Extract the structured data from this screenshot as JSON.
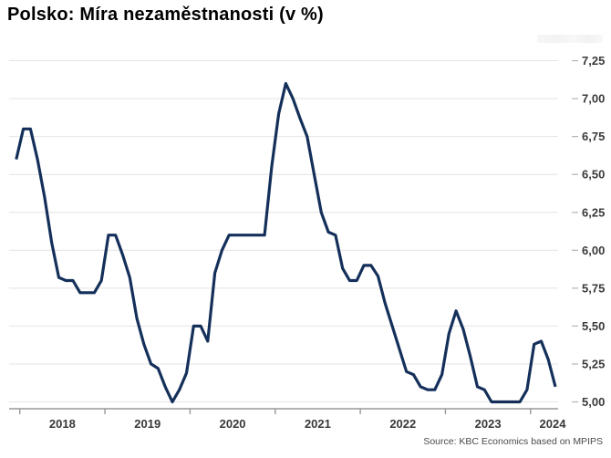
{
  "title": "Polsko: Míra nezaměstnanosti (v %)",
  "source_note": "Source: KBC Economics based on MPIPS",
  "colors": {
    "line": "#14305a",
    "grid": "#e4e4e4",
    "axis": "#999999",
    "right_tick": "#b3b3b3",
    "tick_label": "#3a3a3a",
    "title_text": "#000000",
    "source_text": "#4a4a4a",
    "background": "#ffffff"
  },
  "chart_data": {
    "type": "line",
    "title": "Polsko: Míra nezaměstnanosti (v %)",
    "xlabel": "",
    "ylabel": "",
    "legend": "none",
    "grid": "horizontal",
    "y_axis": {
      "side": "right",
      "min": 5.0,
      "max": 7.25,
      "step": 0.25,
      "tick_labels": [
        "5,00",
        "5,25",
        "5,50",
        "5,75",
        "6,00",
        "6,25",
        "6,50",
        "6,75",
        "7,00",
        "7,25"
      ]
    },
    "x_axis": {
      "year_tick_labels": [
        "2018",
        "2019",
        "2020",
        "2021",
        "2022",
        "2023",
        "2024"
      ]
    },
    "series": [
      {
        "name": "Míra nezaměstnanosti (v %)",
        "color": "#14305a",
        "points": [
          [
            "2017-12",
            6.6
          ],
          [
            "2018-01",
            6.8
          ],
          [
            "2018-02",
            6.8
          ],
          [
            "2018-03",
            6.6
          ],
          [
            "2018-04",
            6.35
          ],
          [
            "2018-05",
            6.05
          ],
          [
            "2018-06",
            5.82
          ],
          [
            "2018-07",
            5.8
          ],
          [
            "2018-08",
            5.8
          ],
          [
            "2018-09",
            5.72
          ],
          [
            "2018-10",
            5.72
          ],
          [
            "2018-11",
            5.72
          ],
          [
            "2018-12",
            5.8
          ],
          [
            "2019-01",
            6.1
          ],
          [
            "2019-02",
            6.1
          ],
          [
            "2019-03",
            5.97
          ],
          [
            "2019-04",
            5.82
          ],
          [
            "2019-05",
            5.55
          ],
          [
            "2019-06",
            5.38
          ],
          [
            "2019-07",
            5.25
          ],
          [
            "2019-08",
            5.22
          ],
          [
            "2019-09",
            5.1
          ],
          [
            "2019-10",
            5.0
          ],
          [
            "2019-11",
            5.08
          ],
          [
            "2019-12",
            5.19
          ],
          [
            "2020-01",
            5.5
          ],
          [
            "2020-02",
            5.5
          ],
          [
            "2020-03",
            5.4
          ],
          [
            "2020-04",
            5.85
          ],
          [
            "2020-05",
            6.0
          ],
          [
            "2020-06",
            6.1
          ],
          [
            "2020-07",
            6.1
          ],
          [
            "2020-08",
            6.1
          ],
          [
            "2020-09",
            6.1
          ],
          [
            "2020-10",
            6.1
          ],
          [
            "2020-11",
            6.1
          ],
          [
            "2020-12",
            6.55
          ],
          [
            "2021-01",
            6.9
          ],
          [
            "2021-02",
            7.1
          ],
          [
            "2021-03",
            7.0
          ],
          [
            "2021-04",
            6.87
          ],
          [
            "2021-05",
            6.75
          ],
          [
            "2021-06",
            6.5
          ],
          [
            "2021-07",
            6.25
          ],
          [
            "2021-08",
            6.12
          ],
          [
            "2021-09",
            6.1
          ],
          [
            "2021-10",
            5.88
          ],
          [
            "2021-11",
            5.8
          ],
          [
            "2021-12",
            5.8
          ],
          [
            "2022-01",
            5.9
          ],
          [
            "2022-02",
            5.9
          ],
          [
            "2022-03",
            5.83
          ],
          [
            "2022-04",
            5.65
          ],
          [
            "2022-05",
            5.5
          ],
          [
            "2022-06",
            5.35
          ],
          [
            "2022-07",
            5.2
          ],
          [
            "2022-08",
            5.18
          ],
          [
            "2022-09",
            5.1
          ],
          [
            "2022-10",
            5.08
          ],
          [
            "2022-11",
            5.08
          ],
          [
            "2022-12",
            5.18
          ],
          [
            "2023-01",
            5.45
          ],
          [
            "2023-02",
            5.6
          ],
          [
            "2023-03",
            5.48
          ],
          [
            "2023-04",
            5.3
          ],
          [
            "2023-05",
            5.1
          ],
          [
            "2023-06",
            5.08
          ],
          [
            "2023-07",
            5.0
          ],
          [
            "2023-08",
            5.0
          ],
          [
            "2023-09",
            5.0
          ],
          [
            "2023-10",
            5.0
          ],
          [
            "2023-11",
            5.0
          ],
          [
            "2023-12",
            5.08
          ],
          [
            "2024-01",
            5.38
          ],
          [
            "2024-02",
            5.4
          ],
          [
            "2024-03",
            5.28
          ],
          [
            "2024-04",
            5.1
          ]
        ]
      }
    ]
  }
}
